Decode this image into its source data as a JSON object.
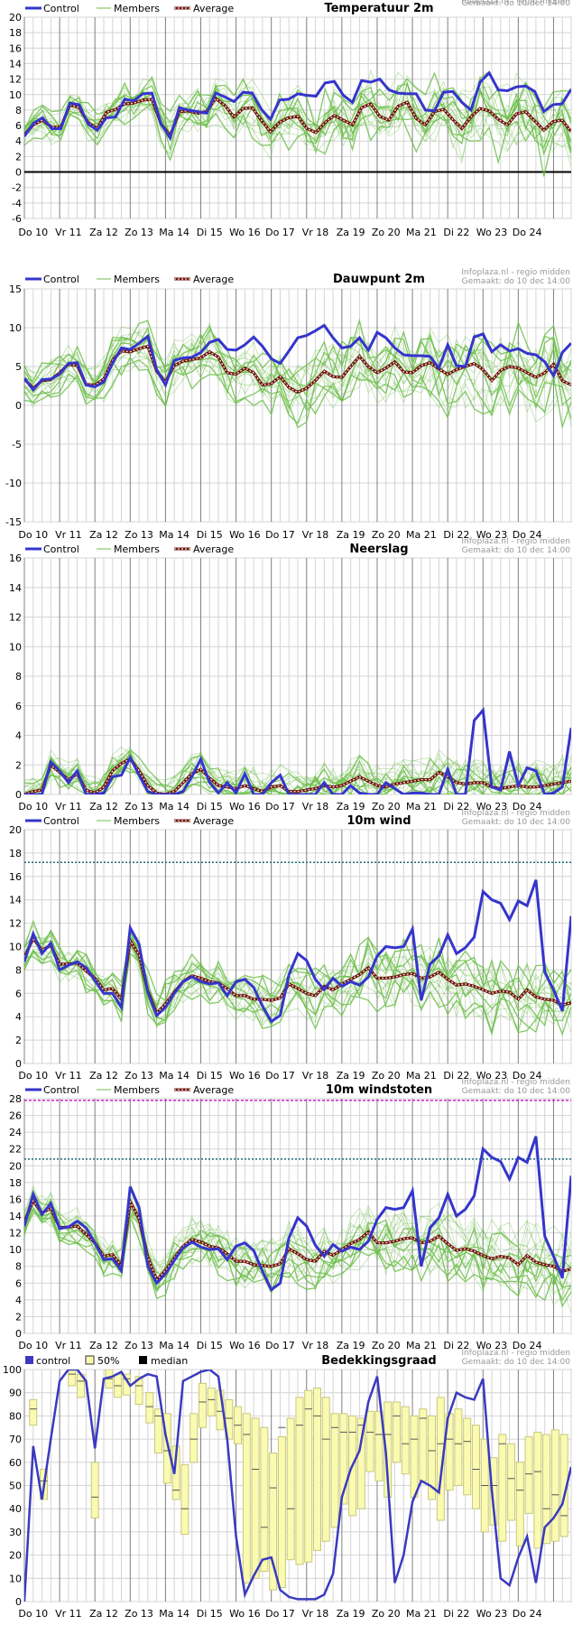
{
  "site": {
    "source": "Infoplaza.nl - regio midden",
    "made": "Gemaakt: do 10 dec 14:00"
  },
  "legend": {
    "control": "Control",
    "members": "Members",
    "average": "Average",
    "cloud_control": "control",
    "cloud_50": "50%",
    "cloud_median": "median"
  },
  "x_axis": {
    "day_labels": [
      "Do 10",
      "Vr 11",
      "Za 12",
      "Zo 13",
      "Ma 14",
      "Di 15",
      "Wo 16",
      "Do 17",
      "Vr 18",
      "Za 19",
      "Zo 20",
      "Ma 21",
      "Di 22",
      "Wo 23",
      "Do 24"
    ],
    "num_days": 15.5
  },
  "colors": {
    "control": "#3535cc",
    "member": "#6cbf4a",
    "average_outer": "#6b0f0f",
    "average_inner": "#e9e2b8",
    "grid": "#d4d4d4",
    "day_line": "#808080",
    "box_fill": "#fafab0",
    "box_stroke": "#c8c880",
    "zero_line": "#000000",
    "threshold_teal": "#1a6a7a",
    "threshold_magenta": "#cc22cc",
    "cloud_line": "#3a3ac0"
  },
  "chart_data": [
    {
      "id": "temperature",
      "type": "line",
      "title": "Temperatuur 2m",
      "ylim": [
        -6,
        20
      ],
      "ystep": 2,
      "zero_line": true,
      "control": [
        4.6,
        6.3,
        7.0,
        5.6,
        5.6,
        8.9,
        8.7,
        6.2,
        5.4,
        7.0,
        7.1,
        9.4,
        9.2,
        10.1,
        10.2,
        6.2,
        4.4,
        8.3,
        8.0,
        7.8,
        7.6,
        10.2,
        9.7,
        9.1,
        10.3,
        10.2,
        8.1,
        6.8,
        9.3,
        9.4,
        10.1,
        9.9,
        9.8,
        11.5,
        11.7,
        9.9,
        9.0,
        11.8,
        11.6,
        12.0,
        10.6,
        10.2,
        10.1,
        10.1,
        8.0,
        7.9,
        10.3,
        10.4,
        9.0,
        8.0,
        11.6,
        12.8,
        10.6,
        10.5,
        11.0,
        11.1,
        10.4,
        7.8,
        8.7,
        8.8,
        10.7
      ],
      "average": [
        4.8,
        6.1,
        6.7,
        5.8,
        5.8,
        8.7,
        8.3,
        6.4,
        5.6,
        7.7,
        8.1,
        8.8,
        8.9,
        9.3,
        9.4,
        6.2,
        4.7,
        7.8,
        7.9,
        7.6,
        7.8,
        9.5,
        8.6,
        7.1,
        8.2,
        8.3,
        6.7,
        5.2,
        6.4,
        7.0,
        7.2,
        5.6,
        5.1,
        6.4,
        7.3,
        6.7,
        6.1,
        8.3,
        8.8,
        7.2,
        6.7,
        8.5,
        9.0,
        6.9,
        6.1,
        7.8,
        8.1,
        6.8,
        5.6,
        7.1,
        8.2,
        7.9,
        6.8,
        6.1,
        7.5,
        7.8,
        6.6,
        5.4,
        6.5,
        6.7,
        5.2
      ],
      "member_count": 18,
      "member_spread": 2.4,
      "spread_growth": 1.6,
      "seed": 11
    },
    {
      "id": "dewpoint",
      "type": "line",
      "title": "Dauwpunt 2m",
      "ylim": [
        -15,
        15
      ],
      "ystep": 5,
      "zero_line": false,
      "control": [
        3.5,
        2.0,
        3.3,
        3.4,
        4.0,
        5.4,
        5.5,
        2.6,
        2.4,
        3.0,
        5.4,
        7.4,
        7.2,
        8.0,
        8.9,
        4.6,
        2.6,
        5.8,
        6.1,
        6.2,
        6.8,
        8.1,
        8.5,
        7.2,
        7.1,
        7.8,
        8.8,
        7.6,
        6.0,
        5.4,
        7.0,
        8.7,
        9.0,
        9.6,
        10.3,
        8.7,
        7.4,
        7.6,
        8.7,
        7.1,
        9.4,
        8.7,
        7.4,
        6.5,
        6.4,
        6.4,
        6.3,
        4.8,
        7.8,
        5.1,
        5.0,
        8.8,
        9.2,
        6.9,
        7.8,
        7.0,
        7.3,
        6.7,
        6.5,
        5.6,
        3.8,
        6.8,
        8.0
      ],
      "average": [
        3.4,
        2.2,
        3.2,
        3.3,
        4.2,
        5.3,
        5.1,
        2.7,
        2.6,
        3.4,
        5.8,
        7.0,
        6.9,
        7.3,
        7.6,
        4.4,
        3.0,
        5.1,
        5.7,
        5.9,
        6.1,
        6.9,
        6.2,
        4.2,
        4.0,
        4.8,
        4.2,
        2.6,
        2.8,
        3.7,
        2.3,
        1.7,
        2.2,
        3.2,
        4.4,
        3.7,
        3.6,
        5.0,
        6.3,
        5.0,
        4.2,
        4.8,
        5.6,
        4.3,
        4.2,
        5.1,
        5.5,
        4.7,
        4.0,
        4.6,
        5.0,
        5.4,
        4.6,
        3.2,
        4.5,
        5.0,
        4.8,
        4.2,
        3.6,
        4.2,
        5.3,
        3.2,
        2.6
      ],
      "member_count": 18,
      "member_spread": 2.8,
      "spread_growth": 1.4,
      "seed": 23
    },
    {
      "id": "precip",
      "type": "line",
      "title": "Neerslag",
      "ylim": [
        0,
        16
      ],
      "ystep": 2,
      "zero_line": false,
      "clamp_min": 0,
      "control": [
        0.0,
        0.0,
        0.0,
        2.2,
        1.6,
        0.8,
        1.6,
        0.0,
        0.0,
        0.1,
        1.2,
        1.3,
        2.5,
        1.3,
        0.2,
        0.0,
        0.0,
        0.0,
        0.2,
        1.2,
        2.4,
        0.8,
        0.1,
        0.8,
        0.1,
        1.4,
        0.0,
        0.0,
        0.8,
        1.3,
        0.0,
        0.0,
        0.0,
        0.0,
        0.8,
        0.0,
        0.0,
        0.6,
        0.1,
        0.0,
        0.0,
        0.8,
        0.4,
        0.0,
        0.1,
        0.1,
        0.0,
        0.0,
        1.7,
        0.0,
        0.0,
        5.0,
        5.7,
        0.5,
        0.3,
        2.9,
        0.6,
        1.8,
        1.6,
        0.0,
        0.1,
        0.5,
        4.5
      ],
      "average": [
        0.0,
        0.2,
        0.3,
        2.0,
        1.5,
        1.0,
        1.4,
        0.3,
        0.1,
        0.5,
        1.6,
        2.1,
        2.4,
        1.6,
        0.6,
        0.1,
        0.0,
        0.2,
        0.8,
        1.4,
        1.7,
        1.1,
        0.6,
        0.5,
        0.4,
        0.6,
        0.4,
        0.2,
        0.5,
        0.6,
        0.2,
        0.2,
        0.3,
        0.4,
        0.6,
        0.5,
        0.6,
        0.9,
        1.2,
        0.9,
        0.6,
        0.5,
        0.7,
        0.8,
        0.9,
        1.0,
        1.0,
        1.5,
        1.2,
        0.8,
        0.7,
        0.8,
        0.8,
        0.5,
        0.4,
        0.5,
        0.6,
        0.5,
        0.5,
        0.6,
        0.7,
        0.8,
        0.9
      ],
      "member_count": 18,
      "member_spread": 1.1,
      "spread_growth": 0.9,
      "seed": 37
    },
    {
      "id": "wind",
      "type": "line",
      "title": "10m wind",
      "ylim": [
        0,
        20
      ],
      "ystep": 2,
      "zero_line": false,
      "threshold": 17.2,
      "threshold_style": "teal",
      "control": [
        8.7,
        11.1,
        9.4,
        10.3,
        8.0,
        8.4,
        8.7,
        8.2,
        7.1,
        6.0,
        6.0,
        4.8,
        11.6,
        10.2,
        6.1,
        4.1,
        4.8,
        6.0,
        7.0,
        7.4,
        7.0,
        6.8,
        6.9,
        5.8,
        7.0,
        7.2,
        6.5,
        4.9,
        3.6,
        4.1,
        7.6,
        9.4,
        8.8,
        7.2,
        6.3,
        7.3,
        6.6,
        7.0,
        6.7,
        7.4,
        9.2,
        10.0,
        9.9,
        10.0,
        11.5,
        5.4,
        8.5,
        9.2,
        11.0,
        9.4,
        9.9,
        10.8,
        14.7,
        14.0,
        13.7,
        12.3,
        13.9,
        13.5,
        15.7,
        7.8,
        6.3,
        4.5,
        12.6
      ],
      "average": [
        9.1,
        10.7,
        9.7,
        10.1,
        8.5,
        8.5,
        8.6,
        7.9,
        7.3,
        6.3,
        6.4,
        5.5,
        10.5,
        9.3,
        6.2,
        4.3,
        5.1,
        6.1,
        7.0,
        7.5,
        7.3,
        7.0,
        6.9,
        6.4,
        5.8,
        5.8,
        5.5,
        5.5,
        5.4,
        5.6,
        6.8,
        6.4,
        6.0,
        5.8,
        6.6,
        6.3,
        6.8,
        7.2,
        7.6,
        8.2,
        7.3,
        7.3,
        7.4,
        7.6,
        7.7,
        7.3,
        7.4,
        7.8,
        7.2,
        6.7,
        6.8,
        6.6,
        6.3,
        6.0,
        6.2,
        6.1,
        5.5,
        6.3,
        5.7,
        5.5,
        5.4,
        5.0,
        5.2
      ],
      "member_count": 18,
      "member_spread": 1.6,
      "spread_growth": 1.5,
      "seed": 53
    },
    {
      "id": "gusts",
      "type": "line",
      "title": "10m windstoten",
      "ylim": [
        0,
        28
      ],
      "ystep": 2,
      "zero_line": false,
      "threshold": 20.8,
      "threshold_style": "teal",
      "threshold2": 27.8,
      "threshold2_style": "magenta",
      "control": [
        12.8,
        16.6,
        14.2,
        15.5,
        12.5,
        12.7,
        13.4,
        12.6,
        10.8,
        8.8,
        8.9,
        7.5,
        17.5,
        15.0,
        8.0,
        6.0,
        7.1,
        8.7,
        10.2,
        10.9,
        10.3,
        10.0,
        10.1,
        8.8,
        10.4,
        10.8,
        9.9,
        7.4,
        5.2,
        6.0,
        11.4,
        13.8,
        12.8,
        10.5,
        9.2,
        10.6,
        9.8,
        10.3,
        10.0,
        11.0,
        13.6,
        15.0,
        14.8,
        15.0,
        17.0,
        8.0,
        12.6,
        13.8,
        16.6,
        14.0,
        14.8,
        16.4,
        22.0,
        21.0,
        20.5,
        18.4,
        21.0,
        20.4,
        23.5,
        11.6,
        9.2,
        6.6,
        18.8
      ],
      "average": [
        13.3,
        15.8,
        14.4,
        14.9,
        12.6,
        12.7,
        12.8,
        11.8,
        10.8,
        9.2,
        9.4,
        8.1,
        15.7,
        13.7,
        9.1,
        6.4,
        7.5,
        9.0,
        10.4,
        11.2,
        10.9,
        10.4,
        10.2,
        9.5,
        8.6,
        8.6,
        8.2,
        8.1,
        8.0,
        8.3,
        10.1,
        9.5,
        8.8,
        8.6,
        9.8,
        9.3,
        10.0,
        10.7,
        11.2,
        12.1,
        10.8,
        10.8,
        11.0,
        11.3,
        11.4,
        10.8,
        11.0,
        11.6,
        10.7,
        9.9,
        10.1,
        9.8,
        9.3,
        8.9,
        9.2,
        9.0,
        8.2,
        9.3,
        8.5,
        8.2,
        8.0,
        7.4,
        7.7
      ],
      "member_count": 18,
      "member_spread": 2.2,
      "spread_growth": 1.6,
      "seed": 71
    },
    {
      "id": "cloud",
      "type": "box",
      "title": "Bedekkingsgraad",
      "ylim": [
        0,
        100
      ],
      "ystep": 10,
      "zero_line": false,
      "control": [
        0,
        67,
        44,
        70,
        95,
        100,
        100,
        95,
        66,
        96,
        97,
        99,
        93,
        96,
        98,
        97,
        72,
        55,
        95,
        97,
        99,
        100,
        97,
        70,
        28,
        3,
        11,
        18,
        19,
        5,
        2,
        1,
        1,
        1,
        3,
        12,
        45,
        57,
        65,
        86,
        97,
        64,
        8,
        20,
        43,
        52,
        50,
        47,
        79,
        90,
        88,
        87,
        96,
        48,
        10,
        7,
        19,
        28,
        8,
        32,
        36,
        42,
        58
      ],
      "boxes": [
        {
          "t": 0.25,
          "low": 76,
          "high": 87,
          "median": 83
        },
        {
          "t": 0.55,
          "low": 44,
          "high": 57,
          "median": 52
        },
        {
          "t": 1.35,
          "low": 93,
          "high": 100,
          "median": 98
        },
        {
          "t": 1.6,
          "low": 88,
          "high": 98,
          "median": 95
        },
        {
          "t": 2.0,
          "low": 36,
          "high": 60,
          "median": 45
        },
        {
          "t": 2.4,
          "low": 92,
          "high": 100,
          "median": 96
        },
        {
          "t": 2.65,
          "low": 88,
          "high": 98,
          "median": 93
        },
        {
          "t": 2.9,
          "low": 89,
          "high": 98,
          "median": 96
        },
        {
          "t": 3.25,
          "low": 85,
          "high": 97,
          "median": 93
        },
        {
          "t": 3.55,
          "low": 77,
          "high": 90,
          "median": 84
        },
        {
          "t": 3.8,
          "low": 64,
          "high": 83,
          "median": 80
        },
        {
          "t": 4.05,
          "low": 51,
          "high": 81,
          "median": 65
        },
        {
          "t": 4.3,
          "low": 44,
          "high": 67,
          "median": 48
        },
        {
          "t": 4.55,
          "low": 29,
          "high": 59,
          "median": 40
        },
        {
          "t": 4.8,
          "low": 60,
          "high": 81,
          "median": 70
        },
        {
          "t": 5.05,
          "low": 75,
          "high": 94,
          "median": 86
        },
        {
          "t": 5.3,
          "low": 80,
          "high": 92,
          "median": 87
        },
        {
          "t": 5.55,
          "low": 74,
          "high": 91,
          "median": 82
        },
        {
          "t": 5.8,
          "low": 70,
          "high": 87,
          "median": 79
        },
        {
          "t": 6.05,
          "low": 68,
          "high": 84,
          "median": 76
        },
        {
          "t": 6.3,
          "low": 8,
          "high": 81,
          "median": 72
        },
        {
          "t": 6.55,
          "low": 10,
          "high": 79,
          "median": 57
        },
        {
          "t": 6.8,
          "low": 13,
          "high": 75,
          "median": 32
        },
        {
          "t": 7.05,
          "low": 5,
          "high": 64,
          "median": 49
        },
        {
          "t": 7.3,
          "low": 6,
          "high": 71,
          "median": 75
        },
        {
          "t": 7.55,
          "low": 18,
          "high": 79,
          "median": 40
        },
        {
          "t": 7.8,
          "low": 16,
          "high": 88,
          "median": 76
        },
        {
          "t": 8.05,
          "low": 17,
          "high": 91,
          "median": 83
        },
        {
          "t": 8.3,
          "low": 22,
          "high": 92,
          "median": 80
        },
        {
          "t": 8.55,
          "low": 26,
          "high": 88,
          "median": 70
        },
        {
          "t": 8.8,
          "low": 32,
          "high": 81,
          "median": 75
        },
        {
          "t": 9.05,
          "low": 42,
          "high": 81,
          "median": 73
        },
        {
          "t": 9.3,
          "low": 37,
          "high": 80,
          "median": 73
        },
        {
          "t": 9.55,
          "low": 40,
          "high": 79,
          "median": 76
        },
        {
          "t": 9.8,
          "low": 56,
          "high": 82,
          "median": 73
        },
        {
          "t": 10.05,
          "low": 52,
          "high": 82,
          "median": 72
        },
        {
          "t": 10.3,
          "low": 45,
          "high": 86,
          "median": 72
        },
        {
          "t": 10.55,
          "low": 60,
          "high": 86,
          "median": 80
        },
        {
          "t": 10.8,
          "low": 55,
          "high": 84,
          "median": 68
        },
        {
          "t": 11.05,
          "low": 45,
          "high": 80,
          "median": 70
        },
        {
          "t": 11.3,
          "low": 52,
          "high": 83,
          "median": 79
        },
        {
          "t": 11.55,
          "low": 44,
          "high": 80,
          "median": 65
        },
        {
          "t": 11.8,
          "low": 35,
          "high": 88,
          "median": 68
        },
        {
          "t": 12.05,
          "low": 48,
          "high": 81,
          "median": 70
        },
        {
          "t": 12.3,
          "low": 50,
          "high": 83,
          "median": 68
        },
        {
          "t": 12.55,
          "low": 46,
          "high": 79,
          "median": 69
        },
        {
          "t": 12.8,
          "low": 40,
          "high": 76,
          "median": 57
        },
        {
          "t": 13.05,
          "low": 30,
          "high": 70,
          "median": 50
        },
        {
          "t": 13.3,
          "low": 33,
          "high": 62,
          "median": 50
        },
        {
          "t": 13.55,
          "low": 26,
          "high": 72,
          "median": 68
        },
        {
          "t": 13.8,
          "low": 35,
          "high": 68,
          "median": 53
        },
        {
          "t": 14.05,
          "low": 24,
          "high": 60,
          "median": 48
        },
        {
          "t": 14.3,
          "low": 38,
          "high": 71,
          "median": 55
        },
        {
          "t": 14.55,
          "low": 23,
          "high": 73,
          "median": 56
        },
        {
          "t": 14.8,
          "low": 25,
          "high": 72,
          "median": 40
        },
        {
          "t": 15.05,
          "low": 26,
          "high": 74,
          "median": 46
        },
        {
          "t": 15.3,
          "low": 28,
          "high": 72,
          "median": 37
        }
      ]
    }
  ]
}
